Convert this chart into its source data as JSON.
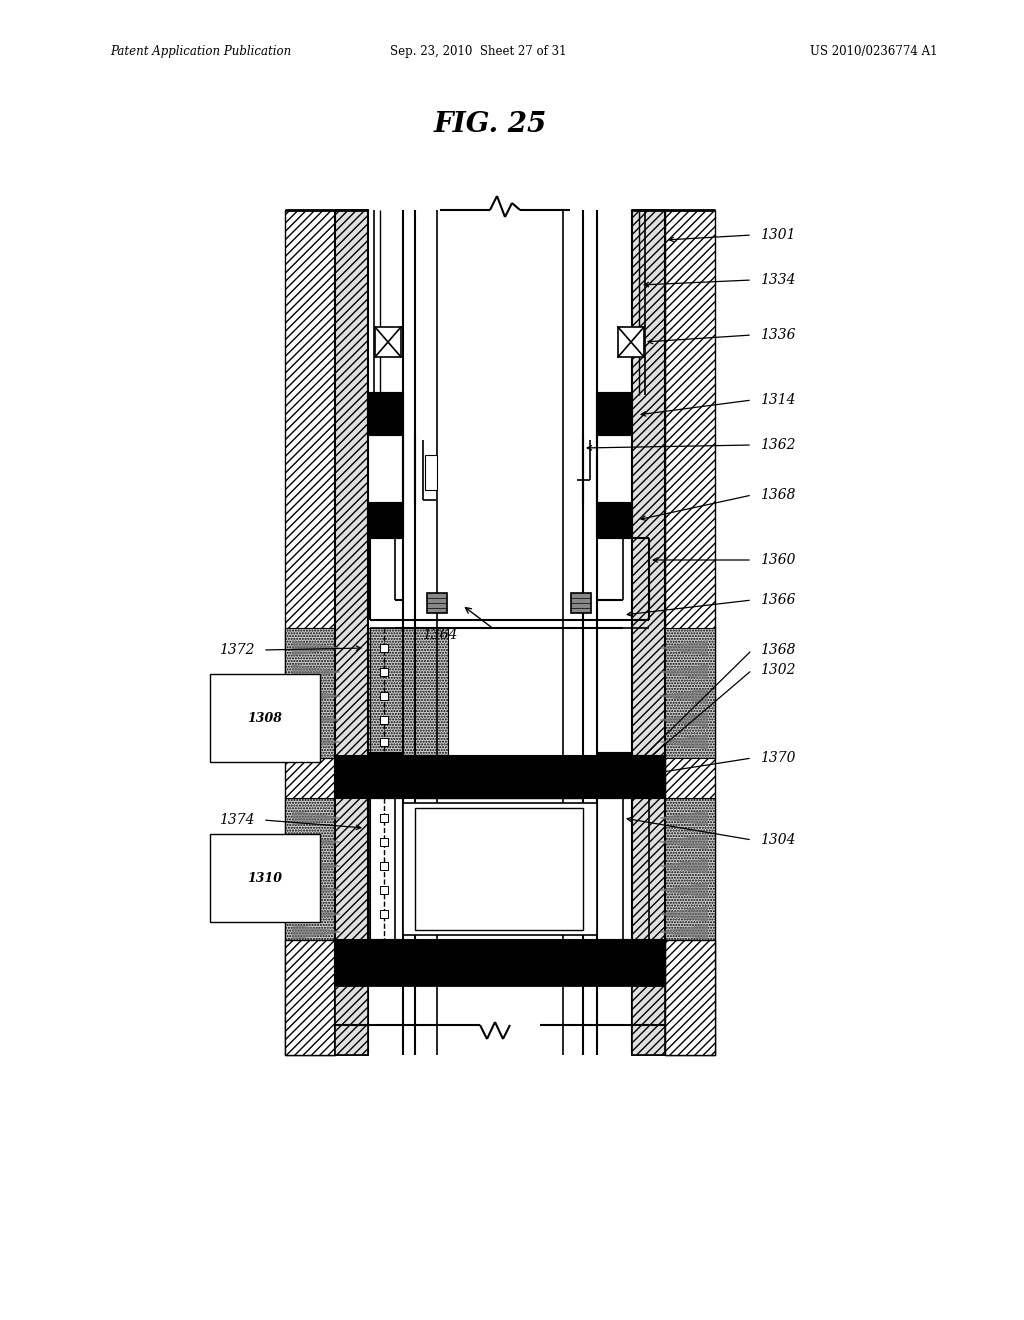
{
  "title": "FIG. 25",
  "header_left": "Patent Application Publication",
  "header_center": "Sep. 23, 2010  Sheet 27 of 31",
  "header_right": "US 2010/0236774 A1",
  "bg_color": "#ffffff"
}
